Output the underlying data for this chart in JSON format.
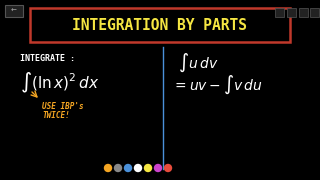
{
  "bg_color": "#000000",
  "title_text": "INTEGRATION BY PARTS",
  "title_color": "#f5e642",
  "title_box_color": "#c0392b",
  "title_box_facecolor": "#000000",
  "integrate_label": "INTEGRATE :",
  "integrate_color": "#ffffff",
  "integral_expr": "$\\int(\\ln x)^2\\,dx$",
  "integral_color": "#ffffff",
  "ibp_text1": "USE IBP's",
  "ibp_text2": "TWICE!",
  "ibp_color": "#f5a623",
  "formula_top": "$\\int u\\,dv$",
  "formula_bot": "$= uv - \\int v\\,du$",
  "formula_color": "#ffffff",
  "divider_color": "#4a90d9",
  "toolbar_dots": [
    "#f5a623",
    "#888888",
    "#4a90d9",
    "#ffffff",
    "#f5e642",
    "#cc44cc",
    "#e74c3c"
  ],
  "nav_back_color": "#333333"
}
